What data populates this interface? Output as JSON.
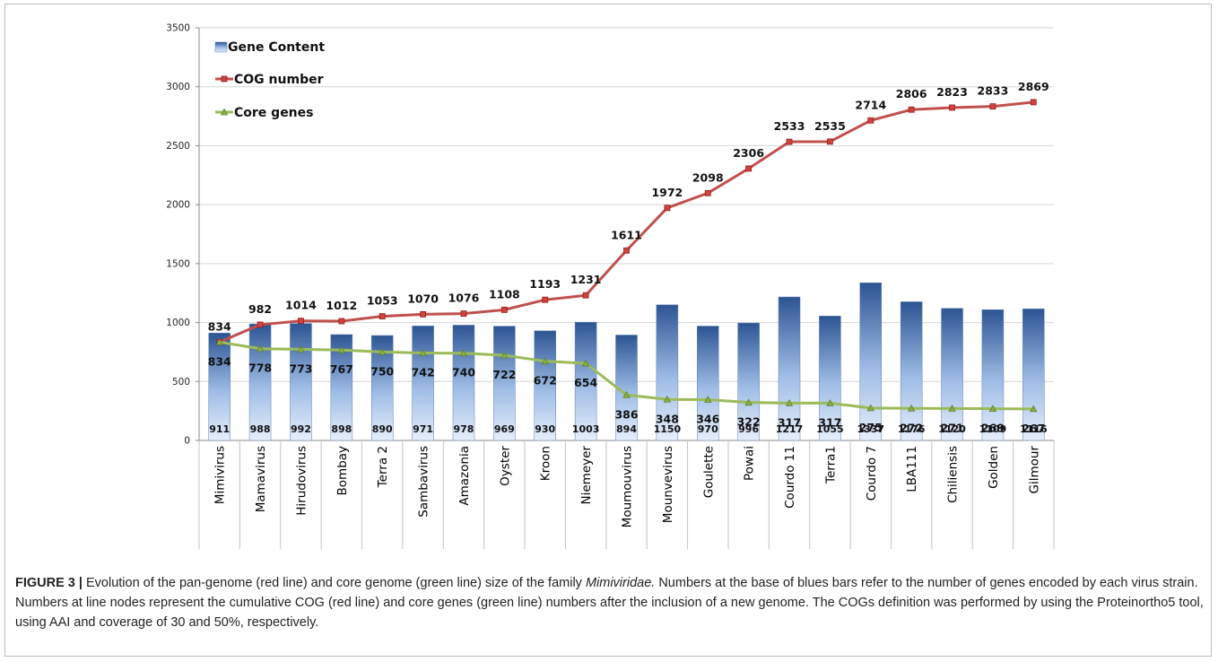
{
  "chart_data": {
    "type": "bar",
    "title": "",
    "xlabel": "",
    "ylabel": "",
    "ylim": [
      0,
      3500
    ],
    "yticks": [
      0,
      500,
      1000,
      1500,
      2000,
      2500,
      3000,
      3500
    ],
    "grid": true,
    "legend_position": "top-left",
    "categories": [
      "Mimivirus",
      "Mamavirus",
      "Hirudovirus",
      "Bombay",
      "Terra 2",
      "Sambavirus",
      "Amazonia",
      "Oyster",
      "Kroon",
      "Niemeyer",
      "Moumouvirus",
      "Mounvevirus",
      "Goulette",
      "Powai",
      "Courdo 11",
      "Terra1",
      "Courdo 7",
      "LBA111",
      "Chiliensis",
      "Golden",
      "Gilmour"
    ],
    "series": [
      {
        "name": "Gene Content",
        "kind": "bar",
        "color": "#4a6fa5",
        "values": [
          911,
          988,
          992,
          898,
          890,
          971,
          978,
          969,
          930,
          1003,
          894,
          1150,
          970,
          996,
          1217,
          1055,
          1337,
          1176,
          1120,
          1109,
          1116
        ]
      },
      {
        "name": "COG number",
        "kind": "line",
        "color": "#c0504d",
        "values": [
          834,
          982,
          1014,
          1012,
          1053,
          1070,
          1076,
          1108,
          1193,
          1231,
          1611,
          1972,
          2098,
          2306,
          2533,
          2535,
          2714,
          2806,
          2823,
          2833,
          2869
        ]
      },
      {
        "name": "Core genes",
        "kind": "line",
        "color": "#9bbb59",
        "values": [
          834,
          778,
          773,
          767,
          750,
          742,
          740,
          722,
          672,
          654,
          386,
          348,
          346,
          322,
          317,
          317,
          275,
          272,
          271,
          269,
          267
        ]
      }
    ]
  },
  "caption": {
    "label": "FIGURE 3 |",
    "text_1": " Evolution of the pan-genome (red line) and core genome (green line) size of the family ",
    "italic": "Mimiviridae.",
    "text_2": " Numbers at the base of blues bars refer to the number of genes encoded by each virus strain. Numbers at line nodes represent the cumulative COG (red line) and core genes (green line) numbers after the inclusion of a new genome. The COGs definition was performed by using the Proteinortho5 tool, using AAI and coverage of 30 and 50%, respectively."
  }
}
